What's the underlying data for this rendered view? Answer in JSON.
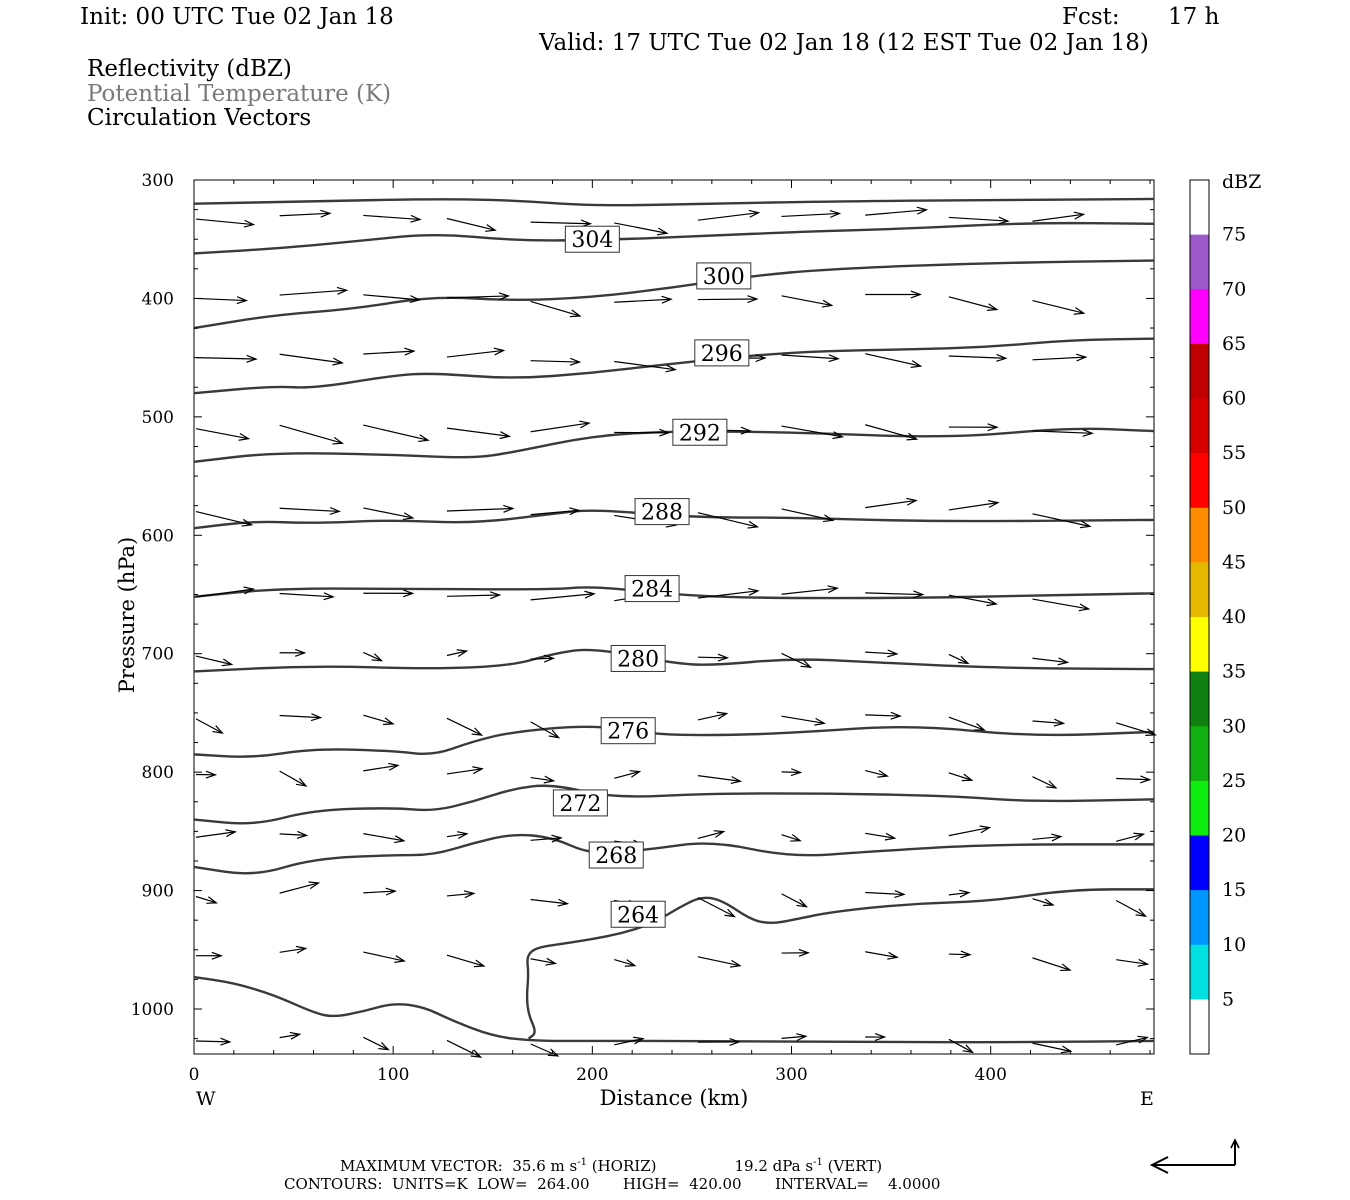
{
  "header": {
    "init": "Init: 00 UTC Tue 02 Jan 18",
    "fcst_label": "Fcst:",
    "fcst_value": "17 h",
    "valid": "Valid: 17 UTC Tue 02 Jan 18 (12 EST Tue 02 Jan 18)",
    "fields": [
      "Reflectivity (dBZ)",
      "Potential Temperature (K)",
      "Circulation Vectors"
    ]
  },
  "chart_data": {
    "type": "cross-section",
    "xlabel": "Distance (km)",
    "ylabel": "Pressure (hPa)",
    "xlim": [
      0,
      482
    ],
    "ylim": [
      300,
      1038
    ],
    "y_scale": "linear (pressure increasing downward)",
    "x_ticks": [
      0,
      100,
      200,
      300,
      400
    ],
    "y_ticks": [
      300,
      400,
      500,
      600,
      700,
      800,
      900,
      1000
    ],
    "x_end_labels": {
      "left": "W",
      "right": "E"
    },
    "grid": false,
    "reflectivity": {
      "units": "dBZ",
      "colorbar_labels": [
        "75",
        "70",
        "65",
        "60",
        "55",
        "50",
        "45",
        "40",
        "35",
        "30",
        "25",
        "20",
        "15",
        "10",
        "5"
      ],
      "colorbar_colors": [
        "#ffffff",
        "#9b59c9",
        "#ff00ff",
        "#c00000",
        "#d80000",
        "#ff0000",
        "#ff8c00",
        "#e6b800",
        "#ffff00",
        "#108010",
        "#10b010",
        "#10ee10",
        "#0000ff",
        "#0096ff",
        "#00e0e0",
        "#ffffff"
      ],
      "colorbar_title": "dBZ",
      "echoes_present": false
    },
    "theta_contours": {
      "units": "K",
      "interval": 4,
      "labels": [
        {
          "value": 304,
          "x": 200,
          "p": 350
        },
        {
          "value": 300,
          "x": 266,
          "p": 381
        },
        {
          "value": 296,
          "x": 265,
          "p": 446
        },
        {
          "value": 292,
          "x": 254,
          "p": 513
        },
        {
          "value": 288,
          "x": 235,
          "p": 580
        },
        {
          "value": 284,
          "x": 230,
          "p": 645
        },
        {
          "value": 280,
          "x": 223,
          "p": 704
        },
        {
          "value": 276,
          "x": 218,
          "p": 765
        },
        {
          "value": 272,
          "x": 194,
          "p": 826
        },
        {
          "value": 268,
          "x": 212,
          "p": 870
        },
        {
          "value": 264,
          "x": 223,
          "p": 920
        }
      ],
      "lines": [
        [
          [
            0,
            320
          ],
          [
            60,
            318
          ],
          [
            120,
            316
          ],
          [
            160,
            317
          ],
          [
            200,
            322
          ],
          [
            260,
            320
          ],
          [
            320,
            318
          ],
          [
            400,
            317
          ],
          [
            482,
            316
          ]
        ],
        [
          [
            0,
            362
          ],
          [
            40,
            358
          ],
          [
            80,
            352
          ],
          [
            120,
            345
          ],
          [
            160,
            351
          ],
          [
            200,
            351
          ],
          [
            260,
            347
          ],
          [
            300,
            344
          ],
          [
            360,
            341
          ],
          [
            420,
            336
          ],
          [
            482,
            337
          ]
        ],
        [
          [
            0,
            425
          ],
          [
            40,
            414
          ],
          [
            80,
            409
          ],
          [
            120,
            398
          ],
          [
            160,
            402
          ],
          [
            200,
            399
          ],
          [
            240,
            391
          ],
          [
            280,
            381
          ],
          [
            320,
            375
          ],
          [
            400,
            370
          ],
          [
            482,
            368
          ]
        ],
        [
          [
            0,
            480
          ],
          [
            40,
            474
          ],
          [
            60,
            476
          ],
          [
            100,
            465
          ],
          [
            120,
            463
          ],
          [
            160,
            468
          ],
          [
            200,
            463
          ],
          [
            240,
            455
          ],
          [
            300,
            445
          ],
          [
            360,
            443
          ],
          [
            400,
            441
          ],
          [
            440,
            435
          ],
          [
            482,
            434
          ]
        ],
        [
          [
            0,
            538
          ],
          [
            40,
            530
          ],
          [
            100,
            532
          ],
          [
            140,
            535
          ],
          [
            160,
            530
          ],
          [
            200,
            516
          ],
          [
            240,
            512
          ],
          [
            300,
            513
          ],
          [
            380,
            518
          ],
          [
            440,
            509
          ],
          [
            482,
            512
          ]
        ],
        [
          [
            0,
            594
          ],
          [
            30,
            588
          ],
          [
            60,
            590
          ],
          [
            100,
            587
          ],
          [
            140,
            590
          ],
          [
            180,
            582
          ],
          [
            200,
            578
          ],
          [
            250,
            585
          ],
          [
            300,
            585
          ],
          [
            360,
            588
          ],
          [
            420,
            588
          ],
          [
            482,
            587
          ]
        ],
        [
          [
            0,
            652
          ],
          [
            40,
            645
          ],
          [
            100,
            645
          ],
          [
            180,
            646
          ],
          [
            200,
            643
          ],
          [
            240,
            650
          ],
          [
            280,
            653
          ],
          [
            360,
            653
          ],
          [
            420,
            651
          ],
          [
            482,
            649
          ]
        ],
        [
          [
            0,
            715
          ],
          [
            60,
            710
          ],
          [
            120,
            713
          ],
          [
            160,
            710
          ],
          [
            180,
            700
          ],
          [
            200,
            695
          ],
          [
            240,
            708
          ],
          [
            260,
            710
          ],
          [
            300,
            704
          ],
          [
            340,
            707
          ],
          [
            400,
            712
          ],
          [
            482,
            713
          ]
        ],
        [
          [
            0,
            785
          ],
          [
            30,
            788
          ],
          [
            60,
            780
          ],
          [
            100,
            782
          ],
          [
            120,
            786
          ],
          [
            140,
            774
          ],
          [
            160,
            766
          ],
          [
            200,
            760
          ],
          [
            230,
            768
          ],
          [
            260,
            769
          ],
          [
            300,
            767
          ],
          [
            360,
            760
          ],
          [
            420,
            770
          ],
          [
            482,
            766
          ]
        ],
        [
          [
            0,
            840
          ],
          [
            30,
            845
          ],
          [
            60,
            832
          ],
          [
            100,
            830
          ],
          [
            120,
            833
          ],
          [
            140,
            825
          ],
          [
            160,
            814
          ],
          [
            180,
            810
          ],
          [
            210,
            822
          ],
          [
            260,
            818
          ],
          [
            320,
            818
          ],
          [
            380,
            820
          ],
          [
            420,
            825
          ],
          [
            482,
            823
          ]
        ],
        [
          [
            0,
            880
          ],
          [
            30,
            888
          ],
          [
            60,
            873
          ],
          [
            100,
            870
          ],
          [
            120,
            870
          ],
          [
            140,
            860
          ],
          [
            160,
            852
          ],
          [
            180,
            855
          ],
          [
            200,
            870
          ],
          [
            230,
            865
          ],
          [
            260,
            858
          ],
          [
            300,
            872
          ],
          [
            340,
            867
          ],
          [
            400,
            861
          ],
          [
            482,
            861
          ]
        ],
        [
          [
            168,
            1025
          ],
          [
            172,
            1020
          ],
          [
            168,
            1005
          ],
          [
            167,
            990
          ],
          [
            168,
            970
          ],
          [
            167,
            955
          ],
          [
            172,
            948
          ],
          [
            185,
            945
          ],
          [
            200,
            941
          ],
          [
            215,
            936
          ],
          [
            230,
            928
          ],
          [
            245,
            913
          ],
          [
            255,
            905
          ],
          [
            265,
            908
          ],
          [
            280,
            925
          ],
          [
            290,
            928
          ],
          [
            300,
            925
          ],
          [
            320,
            918
          ],
          [
            360,
            911
          ],
          [
            400,
            909
          ],
          [
            440,
            899
          ],
          [
            482,
            899
          ]
        ],
        [
          [
            0,
            973
          ],
          [
            20,
            978
          ],
          [
            40,
            988
          ],
          [
            60,
            1003
          ],
          [
            70,
            1007
          ],
          [
            85,
            1002
          ],
          [
            100,
            995
          ],
          [
            115,
            998
          ],
          [
            130,
            1010
          ],
          [
            150,
            1023
          ],
          [
            170,
            1027
          ],
          [
            200,
            1027
          ],
          [
            260,
            1027
          ],
          [
            340,
            1028
          ],
          [
            420,
            1028
          ],
          [
            482,
            1027
          ]
        ]
      ]
    },
    "vector_rows_hpa": [
      333,
      400,
      450,
      510,
      580,
      652,
      702,
      755,
      802,
      855,
      905,
      955,
      1027
    ],
    "vector_cols_km": [
      0,
      42,
      84,
      126,
      168,
      210,
      252,
      294,
      336,
      378,
      420,
      462
    ],
    "max_vector_horiz_ms": "35.6",
    "max_vector_vert_dpas": "19.2"
  },
  "footer": {
    "line1_a": "MAXIMUM VECTOR:  35.6 m s",
    "line1_b": " (HORIZ)",
    "line1_c": "19.2 dPa s",
    "line1_d": " (VERT)",
    "sup": "-1",
    "line2": "CONTOURS:  UNITS=K  LOW=  264.00       HIGH=  420.00       INTERVAL=    4.0000"
  }
}
